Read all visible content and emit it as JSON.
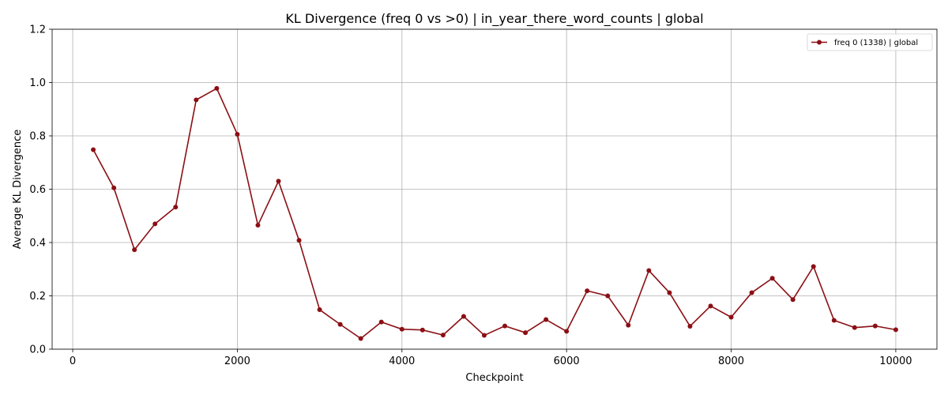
{
  "chart_data": {
    "type": "line",
    "title": "KL Divergence (freq 0 vs >0) | in_year_there_word_counts | global",
    "xlabel": "Checkpoint",
    "ylabel": "Average KL Divergence",
    "xlim": [
      -250,
      10500
    ],
    "ylim": [
      0.0,
      1.2
    ],
    "xticks": [
      0,
      2000,
      4000,
      6000,
      8000,
      10000
    ],
    "xtick_labels": [
      "0",
      "2000",
      "4000",
      "6000",
      "8000",
      "10000"
    ],
    "yticks": [
      0.0,
      0.2,
      0.4,
      0.6,
      0.8,
      1.0,
      1.2
    ],
    "ytick_labels": [
      "0.0",
      "0.2",
      "0.4",
      "0.6",
      "0.8",
      "1.0",
      "1.2"
    ],
    "grid": true,
    "legend_position": "top-right",
    "series": [
      {
        "name": "freq 0 (1338) | global",
        "color": "#8b0f14",
        "marker": "circle",
        "x": [
          250,
          500,
          750,
          1000,
          1250,
          1500,
          1750,
          2000,
          2250,
          2500,
          2750,
          3000,
          3250,
          3500,
          3750,
          4000,
          4250,
          4500,
          4750,
          5000,
          5250,
          5500,
          5750,
          6000,
          6250,
          6500,
          6750,
          7000,
          7250,
          7500,
          7750,
          8000,
          8250,
          8500,
          8750,
          9000,
          9250,
          9500,
          9750,
          10000
        ],
        "y": [
          0.748,
          0.605,
          0.373,
          0.47,
          0.533,
          0.935,
          0.978,
          0.806,
          0.465,
          0.63,
          0.408,
          0.148,
          0.093,
          0.04,
          0.102,
          0.075,
          0.072,
          0.053,
          0.123,
          0.052,
          0.087,
          0.062,
          0.111,
          0.067,
          0.219,
          0.2,
          0.09,
          0.295,
          0.212,
          0.086,
          0.162,
          0.12,
          0.212,
          0.266,
          0.186,
          0.31,
          0.108,
          0.081,
          0.087,
          0.073
        ]
      }
    ]
  }
}
